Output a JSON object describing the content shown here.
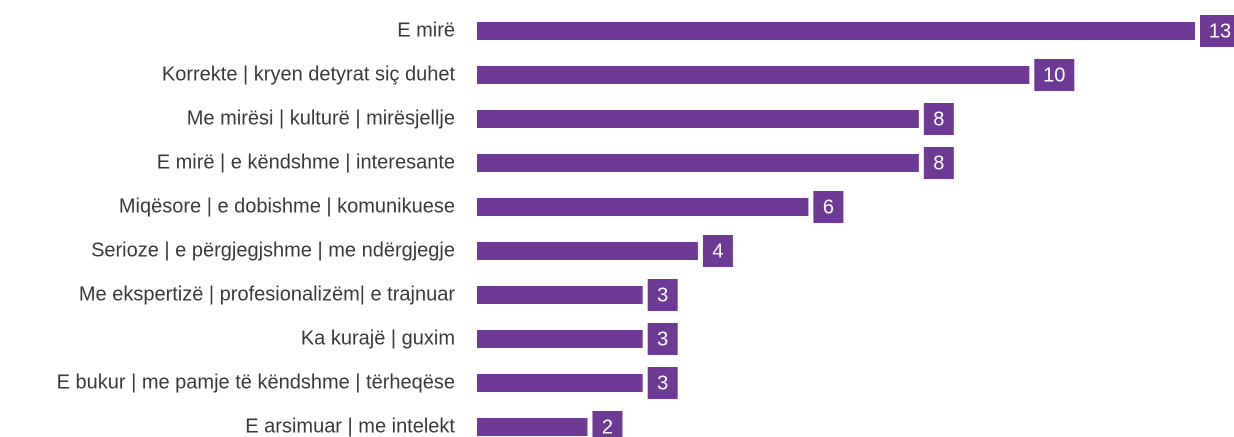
{
  "chart_data": {
    "type": "bar",
    "orientation": "horizontal",
    "categories": [
      "E mirë",
      "Korrekte | kryen detyrat siç duhet",
      "Me mirësi | kulturë | mirësjellje",
      "E mirë | e këndshme | interesante",
      "Miqësore | e dobishme | komunikuese",
      "Serioze | e përgjegjshme | me ndërgjegje",
      "Me ekspertizë | profesionalizëm| e trajnuar",
      "Ka kurajë | guxim",
      "E bukur | me pamje të këndshme | tërheqëse",
      "E arsimuar | me intelekt"
    ],
    "values": [
      13,
      10,
      8,
      8,
      6,
      4,
      3,
      3,
      3,
      2
    ],
    "color": "#6f3996"
  }
}
